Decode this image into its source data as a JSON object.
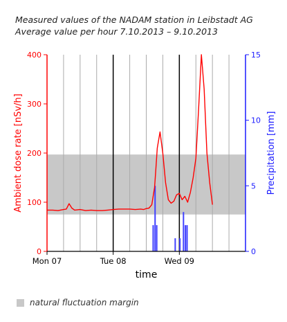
{
  "chart_data": {
    "type": "line",
    "title": "Measured values of the NADAM station in Leibstadt AG",
    "subtitle": "Average value per hour 7.10.2013 – 9.10.2013",
    "xlabel": "time",
    "x_ticks": [
      {
        "label": "Mon 07",
        "t": 0
      },
      {
        "label": "Tue 08",
        "t": 24
      },
      {
        "label": "Wed 09",
        "t": 48
      }
    ],
    "xlim": [
      0,
      72
    ],
    "y_left": {
      "label": "Ambient dose rate [nSv/h]",
      "lim": [
        0,
        400
      ],
      "ticks": [
        0,
        100,
        200,
        300,
        400
      ],
      "color": "#ff0000"
    },
    "y_right": {
      "label": "Precipitation [mm]",
      "lim": [
        0,
        15
      ],
      "ticks": [
        0,
        5,
        10,
        15
      ],
      "color": "#1a1aff"
    },
    "band": {
      "name": "natural fluctuation margin",
      "low": 75,
      "high": 197,
      "color": "#c8c8c8"
    },
    "series": [
      {
        "name": "Ambient dose rate",
        "axis": "left",
        "color": "#ff0000",
        "t": [
          0,
          2,
          4,
          6,
          7,
          8,
          9,
          10,
          12,
          14,
          16,
          18,
          20,
          22,
          24,
          26,
          28,
          30,
          32,
          34,
          35,
          36,
          37,
          38,
          39,
          39.5,
          40,
          41,
          42,
          43,
          44,
          45,
          46,
          47,
          48,
          49,
          50,
          51,
          52,
          53,
          54,
          55,
          56,
          57,
          58,
          59,
          60
        ],
        "values": [
          84,
          84,
          83,
          85,
          86,
          97,
          88,
          84,
          85,
          83,
          84,
          83,
          83,
          84,
          85,
          86,
          86,
          86,
          85,
          86,
          85,
          87,
          88,
          95,
          130,
          170,
          210,
          243,
          200,
          140,
          105,
          98,
          102,
          115,
          118,
          105,
          112,
          100,
          120,
          150,
          190,
          290,
          400,
          330,
          200,
          140,
          95
        ]
      },
      {
        "name": "Precipitation",
        "axis": "right",
        "color": "#4040ff",
        "t": [
          38.5,
          39.2,
          39.8,
          46.5,
          48.2,
          49.5,
          50.2,
          50.8
        ],
        "values": [
          2.0,
          5.0,
          2.0,
          1.0,
          1.0,
          3.0,
          2.0,
          2.0
        ]
      }
    ]
  },
  "legend": {
    "label": "natural fluctuation margin"
  }
}
